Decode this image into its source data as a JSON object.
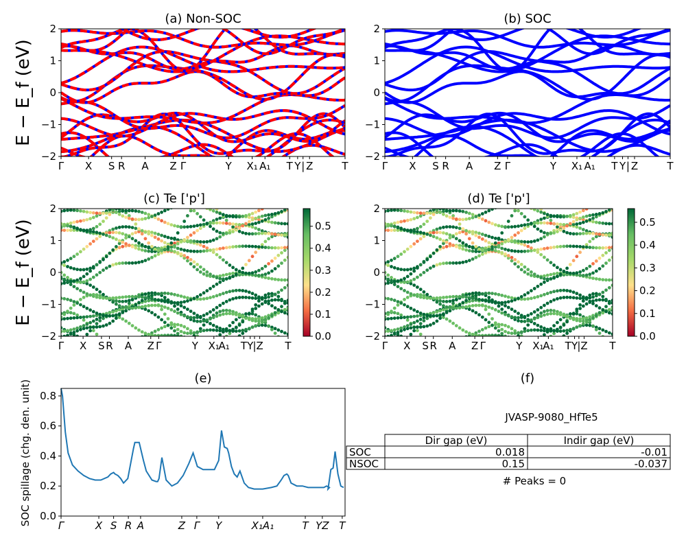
{
  "figure": {
    "material_id": "JVASP-9080_HfTe5",
    "peaks_label": "# Peaks = 0"
  },
  "panels": {
    "a": {
      "title": "(a) Non-SOC"
    },
    "b": {
      "title": "(b) SOC"
    },
    "c": {
      "title": "(c)  Te ['p']"
    },
    "d": {
      "title": "(d) Te ['p']"
    },
    "e": {
      "title": "(e)"
    },
    "f": {
      "title": "(f)"
    }
  },
  "band_ylabel": "E − E_f (eV)",
  "spillage_ylabel": "SOC spillage (chg. den. unit)",
  "kpath_labels": [
    "Γ",
    "X",
    "S",
    "R",
    "A",
    "Z",
    "Γ",
    "Y",
    "X₁",
    "A₁",
    "T",
    "Y",
    "|",
    "Z",
    "T"
  ],
  "kpath_labels_e": [
    "Γ",
    "X",
    "S",
    "R",
    "A",
    "Z",
    "Γ",
    "Y",
    "X₁A₁",
    "T",
    "YZ",
    "T"
  ],
  "colorbar": {
    "c_ticks": [
      "0.0",
      "0.1",
      "0.2",
      "0.3",
      "0.4",
      "0.5"
    ],
    "d_ticks": [
      "0.0",
      "0.1",
      "0.2",
      "0.3",
      "0.4",
      "0.5"
    ],
    "c_max": 0.58,
    "d_max": 0.56,
    "colormap": "RdYlGn"
  },
  "table": {
    "headers": [
      "",
      "Dir gap (eV)",
      "Indir gap (eV)"
    ],
    "rows": [
      {
        "label": "SOC",
        "dir": "0.018",
        "indir": "-0.01"
      },
      {
        "label": "NSOC",
        "dir": "0.15",
        "indir": "-0.037"
      }
    ]
  },
  "chart_data": [
    {
      "type": "line",
      "panel": "a",
      "title": "(a) Non-SOC",
      "ylabel": "E − E_f (eV)",
      "ylim": [
        -2,
        2
      ],
      "yticks": [
        -2,
        -1,
        0,
        1,
        2
      ],
      "series": [
        {
          "name": "",
          "color": "#ff0000"
        },
        {
          "name": "",
          "color": "#0000ff"
        }
      ]
    },
    {
      "type": "line",
      "panel": "b",
      "title": "(b) SOC",
      "ylim": [
        -2,
        2
      ],
      "yticks": [
        -2,
        -1,
        0,
        1,
        2
      ],
      "series": [
        {
          "name": "",
          "color": "#0000ff"
        }
      ]
    },
    {
      "type": "scatter",
      "panel": "c",
      "title": "(c)  Te ['p']",
      "ylabel": "E − E_f (eV)",
      "ylim": [
        -2,
        2
      ],
      "yticks": [
        -2,
        -1,
        0,
        1,
        2
      ]
    },
    {
      "type": "scatter",
      "panel": "d",
      "title": "(d) Te ['p']",
      "ylim": [
        -2,
        2
      ],
      "yticks": [
        -2,
        -1,
        0,
        1,
        2
      ]
    },
    {
      "type": "line",
      "panel": "e",
      "title": "(e)",
      "ylabel": "SOC spillage (chg. den. unit)",
      "ylim": [
        0.0,
        0.85
      ],
      "yticks": [
        0.0,
        0.2,
        0.4,
        0.6,
        0.8
      ],
      "xlim": [
        0,
        1
      ],
      "series": [
        {
          "name": "",
          "color": "#1f77b4",
          "x": [
            0.0,
            0.005,
            0.015,
            0.025,
            0.04,
            0.06,
            0.08,
            0.1,
            0.12,
            0.14,
            0.165,
            0.175,
            0.185,
            0.19,
            0.2,
            0.21,
            0.22,
            0.235,
            0.255,
            0.26,
            0.265,
            0.275,
            0.29,
            0.3,
            0.32,
            0.335,
            0.34,
            0.345,
            0.355,
            0.37,
            0.39,
            0.41,
            0.43,
            0.45,
            0.465,
            0.48,
            0.5,
            0.52,
            0.54,
            0.555,
            0.565,
            0.575,
            0.585,
            0.59,
            0.6,
            0.61,
            0.62,
            0.63,
            0.645,
            0.66,
            0.68,
            0.71,
            0.74,
            0.76,
            0.775,
            0.785,
            0.795,
            0.8,
            0.81,
            0.83,
            0.85,
            0.87,
            0.89,
            0.91,
            0.925,
            0.935,
            0.945,
            0.94,
            0.95,
            0.958,
            0.965,
            0.975,
            0.985,
            0.995
          ],
          "y": [
            0.85,
            0.8,
            0.56,
            0.42,
            0.34,
            0.3,
            0.27,
            0.25,
            0.24,
            0.24,
            0.26,
            0.28,
            0.29,
            0.28,
            0.27,
            0.25,
            0.22,
            0.25,
            0.45,
            0.49,
            0.49,
            0.49,
            0.37,
            0.3,
            0.24,
            0.23,
            0.23,
            0.25,
            0.39,
            0.24,
            0.2,
            0.22,
            0.27,
            0.35,
            0.42,
            0.33,
            0.31,
            0.31,
            0.31,
            0.37,
            0.57,
            0.46,
            0.45,
            0.42,
            0.33,
            0.28,
            0.26,
            0.3,
            0.22,
            0.19,
            0.18,
            0.18,
            0.19,
            0.2,
            0.24,
            0.27,
            0.28,
            0.27,
            0.22,
            0.2,
            0.2,
            0.19,
            0.19,
            0.19,
            0.19,
            0.2,
            0.19,
            0.18,
            0.31,
            0.32,
            0.43,
            0.28,
            0.2,
            0.19
          ]
        }
      ]
    }
  ]
}
